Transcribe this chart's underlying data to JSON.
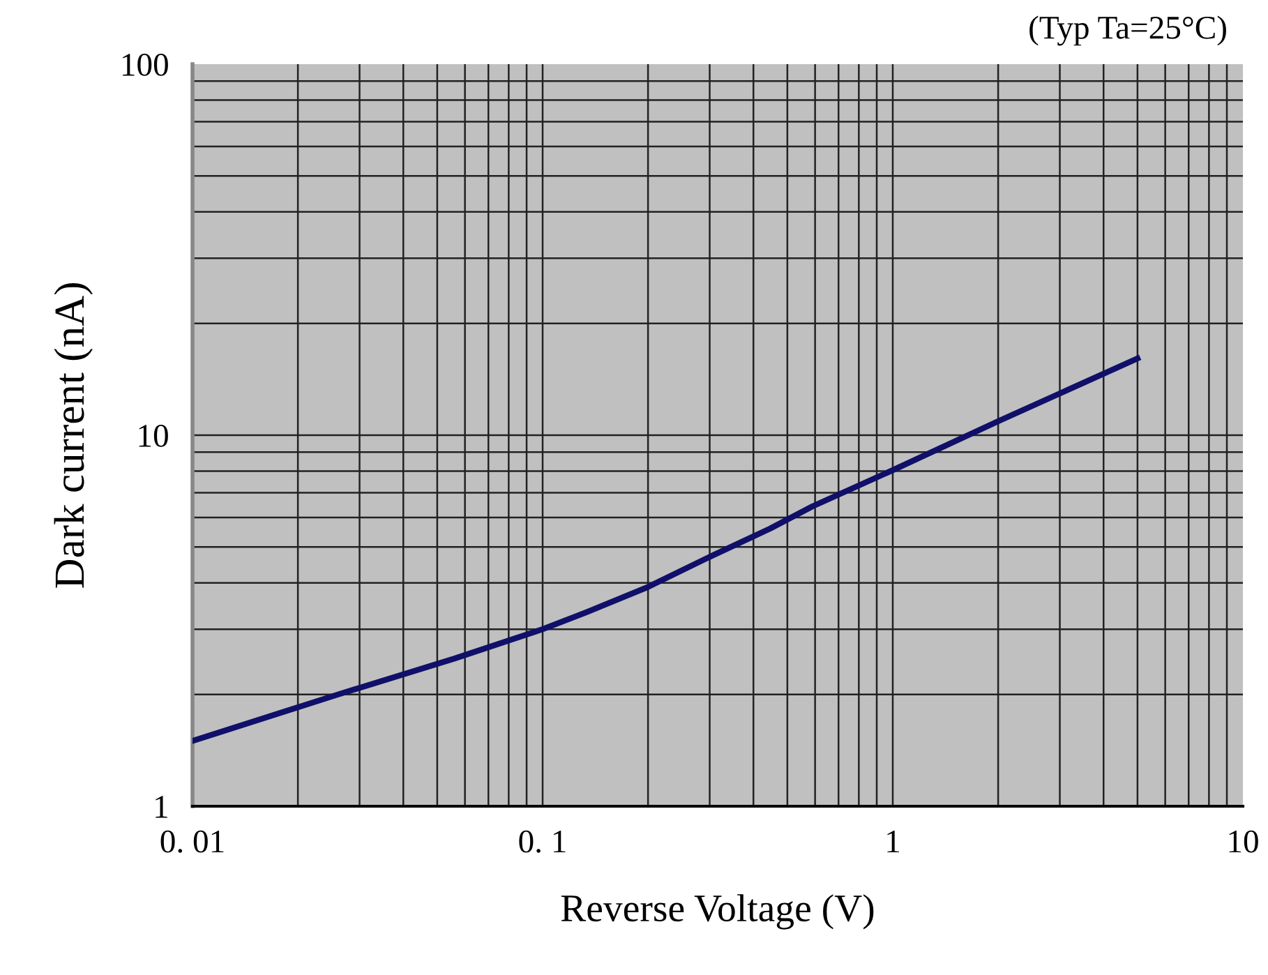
{
  "chart_data": {
    "type": "line",
    "xlabel": "Reverse Voltage (V)",
    "ylabel": "Dark current (nA)",
    "annotations": [
      "(Typ Ta=25°C)"
    ],
    "series": [
      {
        "color": "#10106a",
        "x": [
          0.01,
          0.026,
          0.056,
          0.1,
          0.133,
          0.2,
          0.3,
          0.446,
          0.59,
          1,
          2,
          5
        ],
        "values": [
          1.5,
          2.0,
          2.5,
          3.0,
          3.33,
          3.9,
          4.7,
          5.6,
          6.43,
          8.05,
          10.9,
          16.1
        ]
      }
    ],
    "log": "xy",
    "xlim": [
      0.01,
      10
    ],
    "ylim": [
      1,
      100
    ],
    "xticks": [
      {
        "value": 0.01,
        "label": "0. 01"
      },
      {
        "value": 0.1,
        "label": "0. 1"
      },
      1,
      10
    ],
    "yticks": [
      1,
      10,
      100
    ],
    "grid": true,
    "legend": false,
    "marker": "none",
    "line_style": "solid"
  }
}
